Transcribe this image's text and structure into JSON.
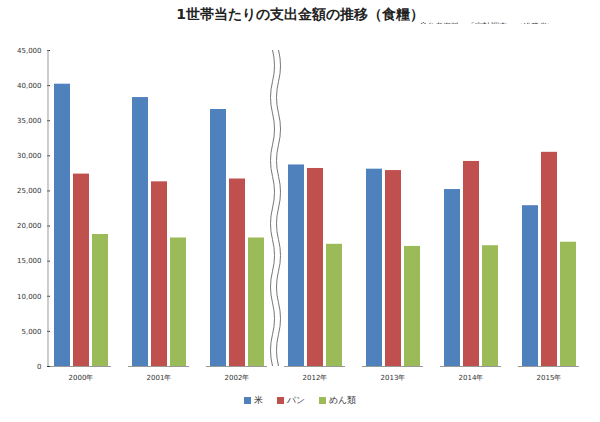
{
  "chart_data": {
    "type": "bar",
    "title": "1世帯当たりの支出金額の推移（食糧）",
    "subtitle": [
      "※参考資料：「家計調査」（総務省）",
      "※単位：円"
    ],
    "categories": [
      "2000年",
      "2001年",
      "2002年",
      "2012年",
      "2013年",
      "2014年",
      "2015年"
    ],
    "series": [
      {
        "name": "米",
        "color": "#4f81bd",
        "values": [
          40200,
          38300,
          36600,
          28700,
          28100,
          25200,
          22900
        ]
      },
      {
        "name": "パン",
        "color": "#c0504d",
        "values": [
          27400,
          26300,
          26700,
          28200,
          27900,
          29200,
          30500
        ]
      },
      {
        "name": "めん類",
        "color": "#9bbb59",
        "values": [
          18800,
          18300,
          18300,
          17400,
          17100,
          17200,
          17700
        ]
      }
    ],
    "ylim": [
      0,
      45000
    ],
    "yticks": [
      0,
      {
        "value": 5000,
        "label": "5,000"
      },
      {
        "value": 10000,
        "label": "10,000"
      },
      {
        "value": 15000,
        "label": "15,000"
      },
      {
        "value": 20000,
        "label": "20,000"
      },
      {
        "value": 25000,
        "label": "25,000"
      },
      {
        "value": 30000,
        "label": "30,000"
      },
      {
        "value": 35000,
        "label": "35,000"
      },
      {
        "value": 40000,
        "label": "40,000"
      },
      {
        "value": 45000,
        "label": "45,000"
      }
    ],
    "grid": false,
    "legend": "bottom"
  }
}
